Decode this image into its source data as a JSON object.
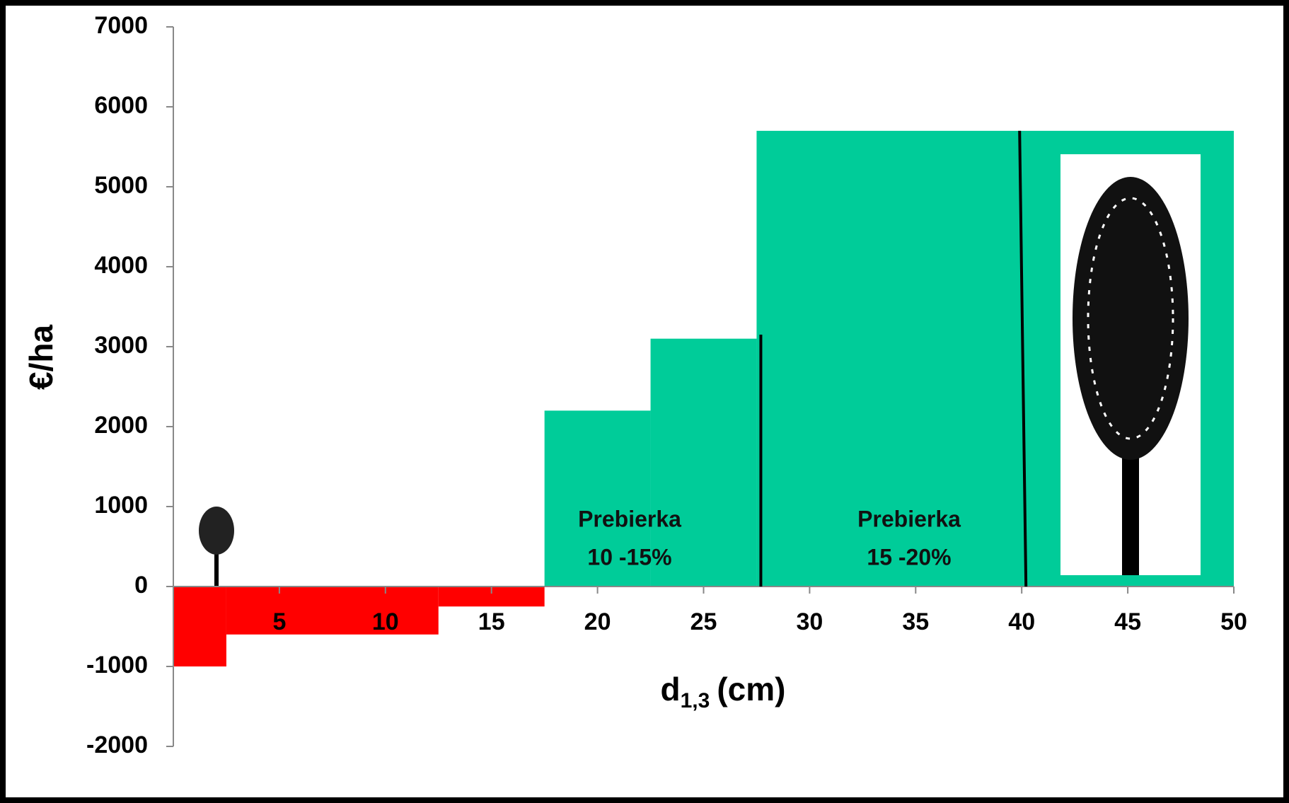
{
  "chart_data": {
    "type": "histogram",
    "y_label": "€/ha",
    "x_label": "d",
    "x_label_subscript": "1,3",
    "x_label_unit": "(cm)",
    "bins": [
      0,
      2.5,
      12.5,
      17.5,
      22.5,
      27.5,
      50
    ],
    "values": [
      -1000,
      -600,
      -250,
      2200,
      3100,
      5700
    ],
    "colors": [
      "#ff0000",
      "#ff0000",
      "#ff0000",
      "#00cc99",
      "#00cc99",
      "#00cc99"
    ],
    "xlim": [
      0,
      50
    ],
    "xticks": [
      5,
      10,
      15,
      20,
      25,
      30,
      35,
      40,
      45,
      50
    ],
    "ylim": [
      -2000,
      7000
    ],
    "yticks": [
      -2000,
      -1000,
      0,
      1000,
      2000,
      3000,
      4000,
      5000,
      6000,
      7000
    ],
    "vlines": [
      {
        "x": [
          27.7,
          27.7
        ],
        "y": [
          3150,
          0
        ]
      },
      {
        "x": [
          39.9,
          40.2
        ],
        "y": [
          5700,
          0
        ]
      }
    ],
    "annotations": [
      [
        "Prebierka",
        "10 -15%"
      ],
      [
        "Prebierka",
        "15 -20%"
      ]
    ]
  }
}
